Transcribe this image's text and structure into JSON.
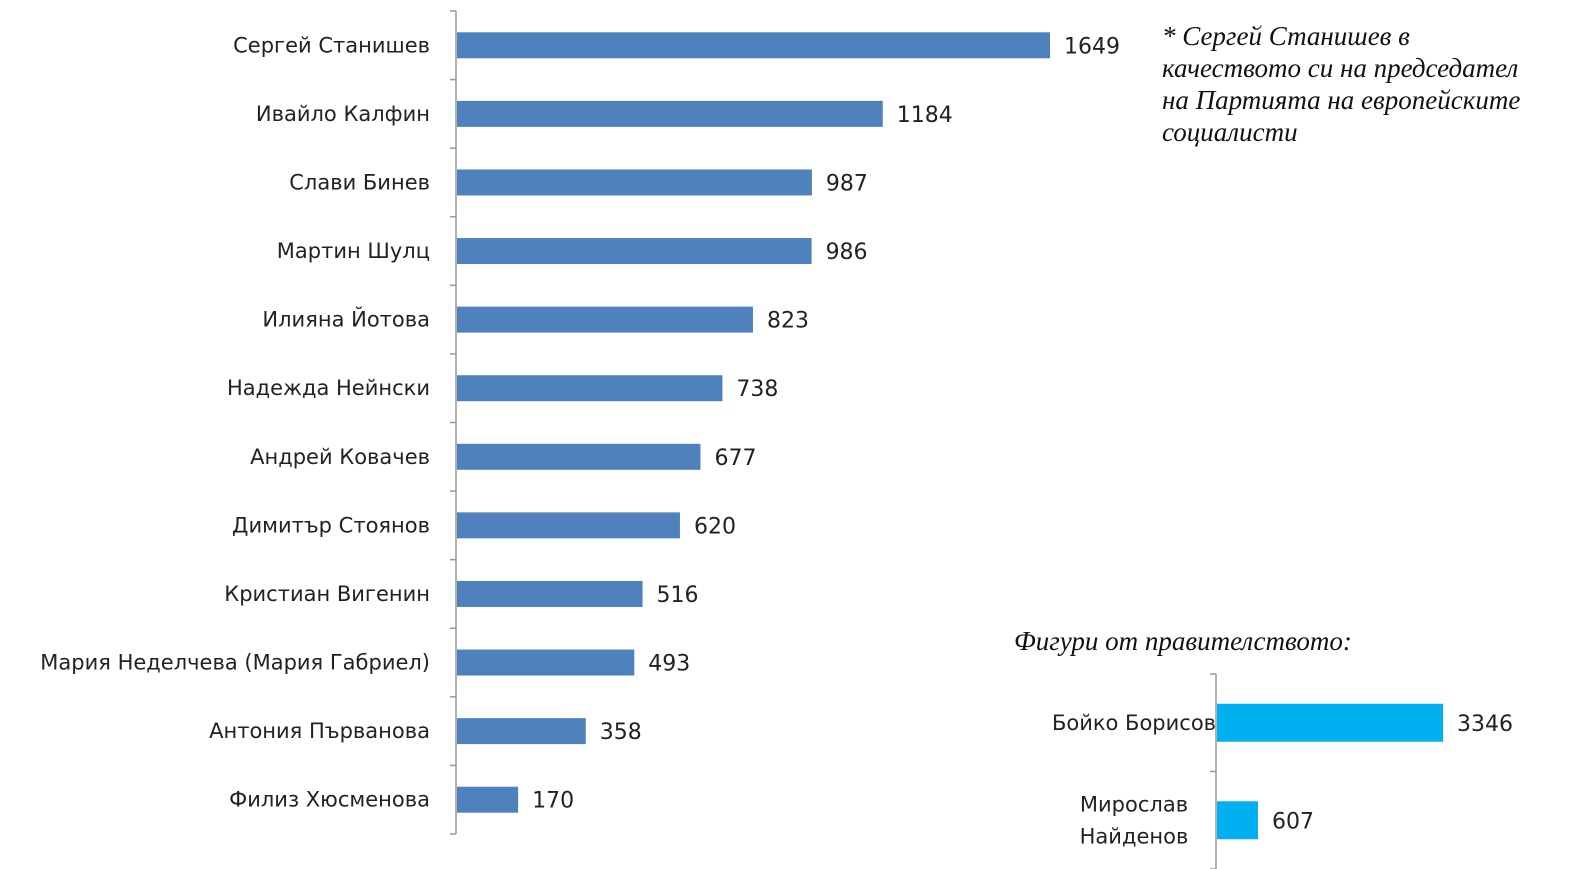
{
  "chart_data": [
    {
      "type": "bar",
      "orientation": "horizontal",
      "categories": [
        "Сергей Станишев",
        "Ивайло Калфин",
        "Слави Бинев",
        "Мартин Шулц",
        "Илияна Йотова",
        "Надежда Нейнски",
        "Андрей Ковачев",
        "Димитър Стоянов",
        "Кристиан Вигенин",
        "Мария Неделчева (Мария Габриел)",
        "Антония Първанова",
        "Филиз Хюсменова"
      ],
      "values": [
        1649,
        1184,
        987,
        986,
        823,
        738,
        677,
        620,
        516,
        493,
        358,
        170
      ],
      "color": "#4f81bd",
      "data_labels": true,
      "grid": false,
      "note": "* Сергей Станишев в\nкачеството си на председател\nна Партията на европейските\nсоциалисти"
    },
    {
      "type": "bar",
      "orientation": "horizontal",
      "title": "Фигури от правителството:",
      "categories": [
        "Бойко Борисов",
        "Мирослав Найденов"
      ],
      "values": [
        3346,
        607
      ],
      "color": "#00b0f0",
      "data_labels": true,
      "grid": false
    }
  ]
}
